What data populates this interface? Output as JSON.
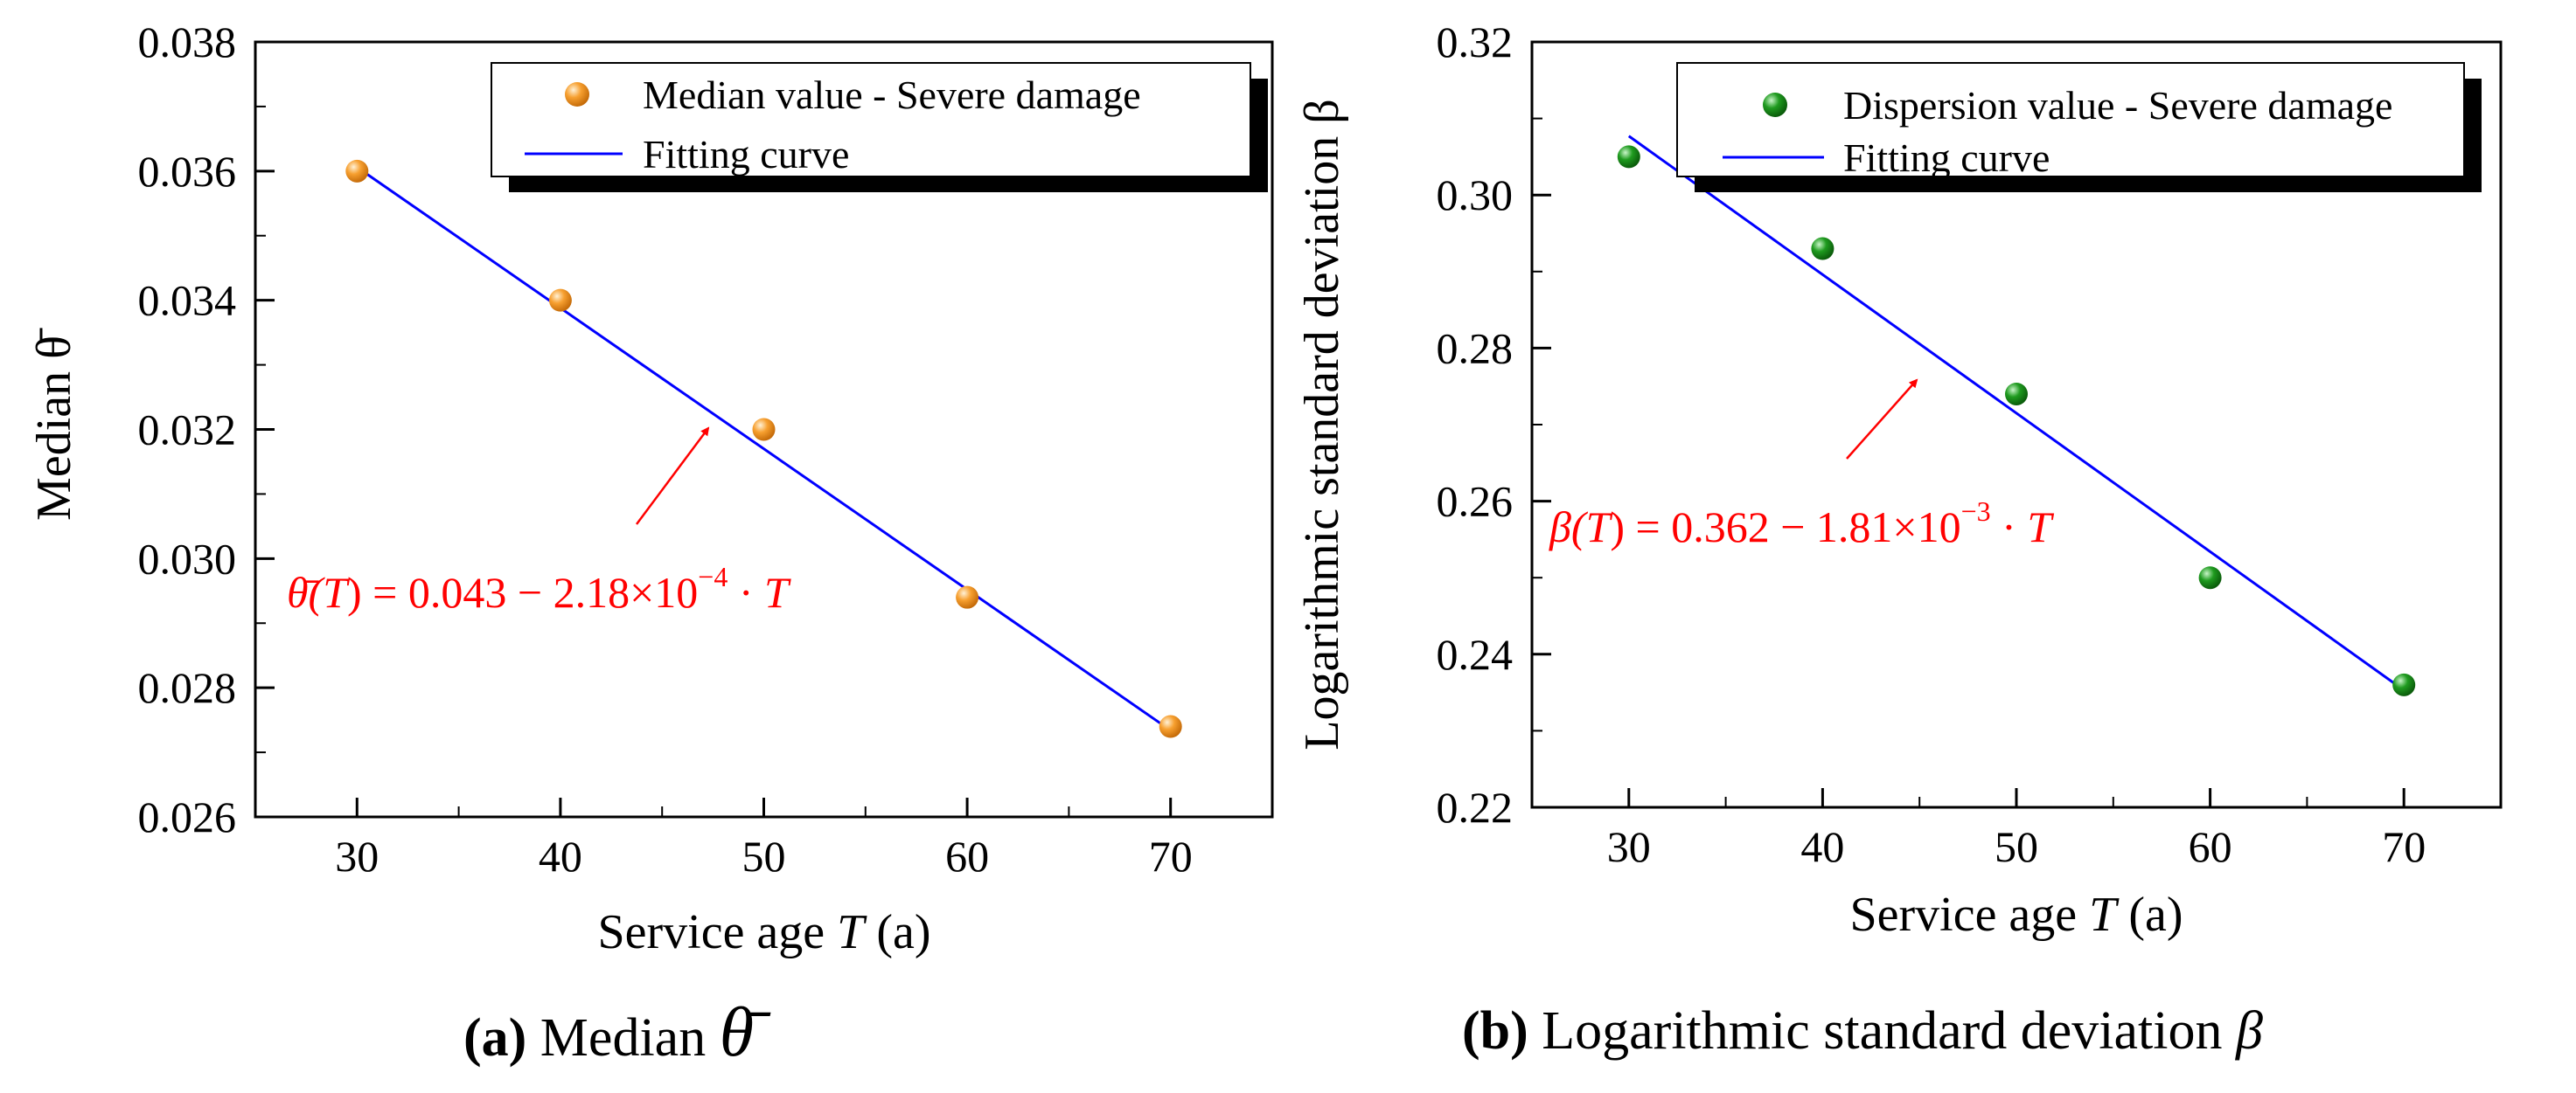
{
  "chart_data": [
    {
      "type": "scatter",
      "panel": "a",
      "series": [
        {
          "name": "Median value - Severe damage",
          "x": [
            30,
            40,
            50,
            60,
            70
          ],
          "y": [
            0.036,
            0.034,
            0.032,
            0.0294,
            0.0274
          ],
          "color": "#f5901e",
          "marker": "circle"
        },
        {
          "name": "Fitting curve",
          "x": [
            30,
            70
          ],
          "y": [
            0.03606,
            0.02734
          ],
          "color": "#0000ff",
          "style": "line"
        }
      ],
      "xlabel_pre": "Service age ",
      "xlabel_var": "T",
      "xlabel_post": " (a)",
      "ylabel": "Median θ̄",
      "xlim": [
        25,
        75
      ],
      "ylim": [
        0.026,
        0.038
      ],
      "xticks": [
        "30",
        "40",
        "50",
        "60",
        "70"
      ],
      "yticks": [
        "0.026",
        "0.028",
        "0.030",
        "0.032",
        "0.034",
        "0.036",
        "0.038"
      ],
      "equation": "θ̄(T) = 0.043 − 2.18×10⁻⁴ · T",
      "equation_parts": {
        "lhs": "θ̄(",
        "var": "T",
        "mid": ") = 0.043 − 2.18×10",
        "exp": "−4",
        "tail": " · ",
        "var2": "T"
      },
      "caption": {
        "label": "(a)",
        "text": " Median ",
        "symbol": "θ̄"
      },
      "legend_position": "top-right"
    },
    {
      "type": "scatter",
      "panel": "b",
      "series": [
        {
          "name": "Dispersion value - Severe damage",
          "x": [
            30,
            40,
            50,
            60,
            70
          ],
          "y": [
            0.305,
            0.293,
            0.274,
            0.25,
            0.236
          ],
          "color": "#1a8a1a",
          "marker": "circle"
        },
        {
          "name": "Fitting curve",
          "x": [
            30,
            70
          ],
          "y": [
            0.3077,
            0.2353
          ],
          "color": "#0000ff",
          "style": "line"
        }
      ],
      "xlabel_pre": "Service age ",
      "xlabel_var": "T",
      "xlabel_post": " (a)",
      "ylabel": "Logarithmic standard deviation β",
      "xlim": [
        25,
        75
      ],
      "ylim": [
        0.22,
        0.32
      ],
      "xticks": [
        "30",
        "40",
        "50",
        "60",
        "70"
      ],
      "yticks": [
        "0.22",
        "0.24",
        "0.26",
        "0.28",
        "0.30",
        "0.32"
      ],
      "equation": "β(T) = 0.362 − 1.81×10⁻³ · T",
      "equation_parts": {
        "lhs": "β(",
        "var": "T",
        "mid": ") = 0.362 − 1.81×10",
        "exp": "−3",
        "tail": " · ",
        "var2": "T"
      },
      "caption": {
        "label": "(b)",
        "text": " Logarithmic standard deviation ",
        "symbol": "β"
      },
      "legend_position": "top-right"
    }
  ],
  "colors": {
    "fit": "#0000ff",
    "annotation": "#ff0000",
    "median_marker": "#f5901e",
    "dispersion_marker": "#1a8a1a"
  }
}
